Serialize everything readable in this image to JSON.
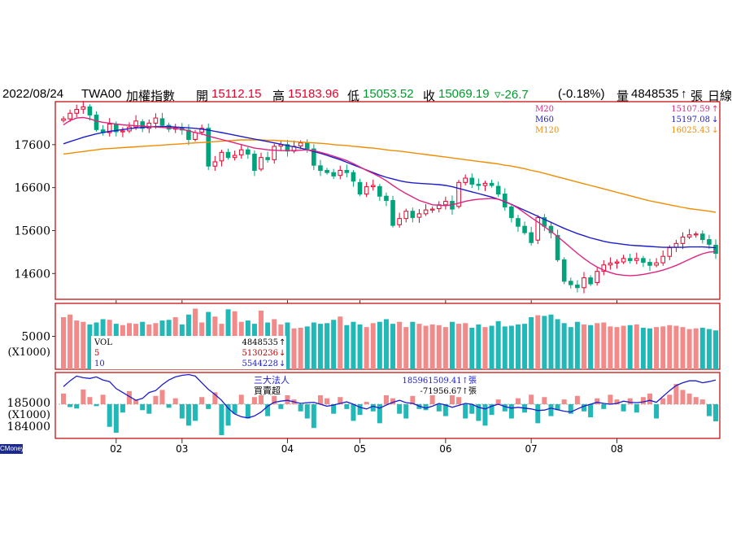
{
  "header": {
    "date": "2022/08/24",
    "symbol": "TWA00",
    "name": "加權指數",
    "open_label": "開",
    "open": "15112.15",
    "high_label": "高",
    "high": "15183.96",
    "low_label": "低",
    "low": "15053.52",
    "close_label": "收",
    "close": "15069.19",
    "change": "▿-26.7",
    "change_pct": "(-0.18%)",
    "volume_label": "量",
    "volume": "4848535",
    "volume_arrow": "↑",
    "volume_unit": "張",
    "period": "日線"
  },
  "brand": "CMoney",
  "colors": {
    "up": "#e8002a",
    "down": "#00a37a",
    "ma20": "#e0237f",
    "ma60": "#1c1ccc",
    "ma120": "#f08c00",
    "vol_up": "#f28a8a",
    "vol_down": "#22b8b8",
    "frame": "#c00000"
  },
  "chart_data": [
    {
      "type": "candlestick",
      "title": "price",
      "ylim": [
        14000,
        18600
      ],
      "yticks": [
        17600,
        16600,
        15600,
        14600
      ],
      "x_labels": [
        "02",
        "03",
        "04",
        "05",
        "06",
        "07",
        "08"
      ],
      "legend": [
        {
          "name": "M20",
          "value": "15107.59",
          "arrow": "↑",
          "color": "#e0237f"
        },
        {
          "name": "M60",
          "value": "15197.08",
          "arrow": "↓",
          "color": "#1c1ccc"
        },
        {
          "name": "M120",
          "value": "16025.43",
          "arrow": "↓",
          "color": "#f08c00"
        }
      ],
      "closes": [
        18200,
        18330,
        18420,
        18480,
        18290,
        17950,
        17880,
        18080,
        17900,
        17920,
        18010,
        18150,
        17980,
        18100,
        18220,
        18050,
        17960,
        18000,
        17940,
        17720,
        17880,
        17980,
        17100,
        17200,
        17420,
        17300,
        17350,
        17480,
        17380,
        17000,
        17300,
        17250,
        17560,
        17600,
        17450,
        17560,
        17640,
        17500,
        17120,
        17000,
        16950,
        16870,
        17000,
        16950,
        16750,
        16450,
        16620,
        16650,
        16400,
        16300,
        15720,
        15880,
        16050,
        15900,
        15990,
        16080,
        16100,
        16200,
        16280,
        16100,
        16720,
        16820,
        16680,
        16650,
        16700,
        16650,
        16450,
        16150,
        15900,
        15700,
        15550,
        15320,
        15900,
        15700,
        15550,
        14920,
        14420,
        14340,
        14270,
        14500,
        14360,
        14650,
        14800,
        14840,
        14870,
        14950,
        14900,
        14950,
        14860,
        14790,
        14850,
        15000,
        15200,
        15300,
        15450,
        15500,
        15520,
        15390,
        15280,
        15069
      ],
      "ma20": [
        18060,
        18160,
        18220,
        18230,
        18200,
        18150,
        18120,
        18100,
        18080,
        18060,
        18050,
        18040,
        18030,
        18020,
        18010,
        18000,
        17990,
        17980,
        17960,
        17920,
        17880,
        17850,
        17800,
        17760,
        17720,
        17680,
        17640,
        17600,
        17560,
        17520,
        17500,
        17480,
        17470,
        17460,
        17460,
        17460,
        17470,
        17480,
        17460,
        17420,
        17380,
        17330,
        17280,
        17230,
        17160,
        17080,
        17000,
        16930,
        16850,
        16760,
        16650,
        16550,
        16460,
        16380,
        16300,
        16250,
        16200,
        16190,
        16180,
        16200,
        16240,
        16280,
        16310,
        16330,
        16340,
        16350,
        16330,
        16280,
        16210,
        16120,
        16010,
        15900,
        15800,
        15690,
        15580,
        15460,
        15330,
        15200,
        15070,
        14950,
        14840,
        14750,
        14680,
        14620,
        14580,
        14560,
        14550,
        14560,
        14580,
        14610,
        14640,
        14680,
        14730,
        14790,
        14860,
        14930,
        15000,
        15060,
        15100,
        15110
      ],
      "ma60": [
        17620,
        17670,
        17720,
        17770,
        17810,
        17850,
        17880,
        17910,
        17930,
        17950,
        17970,
        17990,
        18000,
        18010,
        18020,
        18020,
        18020,
        18010,
        18000,
        17990,
        17980,
        17960,
        17940,
        17910,
        17880,
        17850,
        17820,
        17790,
        17760,
        17730,
        17700,
        17670,
        17640,
        17610,
        17580,
        17550,
        17520,
        17480,
        17440,
        17400,
        17350,
        17300,
        17250,
        17190,
        17130,
        17070,
        17010,
        16950,
        16890,
        16840,
        16800,
        16760,
        16730,
        16710,
        16700,
        16690,
        16680,
        16670,
        16650,
        16620,
        16580,
        16540,
        16500,
        16460,
        16420,
        16380,
        16330,
        16270,
        16210,
        16140,
        16070,
        16000,
        15930,
        15860,
        15790,
        15720,
        15650,
        15590,
        15530,
        15480,
        15430,
        15390,
        15350,
        15320,
        15300,
        15280,
        15260,
        15250,
        15240,
        15230,
        15220,
        15210,
        15210,
        15210,
        15210,
        15220,
        15220,
        15220,
        15210,
        15200
      ],
      "ma120": [
        17380,
        17400,
        17420,
        17440,
        17460,
        17480,
        17500,
        17510,
        17520,
        17530,
        17540,
        17550,
        17560,
        17570,
        17580,
        17590,
        17600,
        17610,
        17620,
        17630,
        17640,
        17650,
        17660,
        17670,
        17680,
        17690,
        17700,
        17710,
        17710,
        17710,
        17710,
        17700,
        17700,
        17690,
        17680,
        17670,
        17660,
        17650,
        17640,
        17630,
        17620,
        17600,
        17590,
        17580,
        17560,
        17550,
        17530,
        17520,
        17500,
        17480,
        17460,
        17450,
        17430,
        17410,
        17390,
        17370,
        17350,
        17330,
        17310,
        17290,
        17270,
        17250,
        17230,
        17210,
        17190,
        17170,
        17150,
        17120,
        17100,
        17070,
        17040,
        17000,
        16970,
        16930,
        16890,
        16850,
        16810,
        16770,
        16730,
        16690,
        16650,
        16610,
        16570,
        16530,
        16490,
        16450,
        16410,
        16370,
        16330,
        16290,
        16260,
        16230,
        16200,
        16170,
        16140,
        16110,
        16090,
        16070,
        16050,
        16025
      ]
    },
    {
      "type": "bar",
      "title": "volume",
      "ylabel": "(X1000)",
      "ytick": "5000",
      "legend": [
        {
          "name": "VOL",
          "value": "4848535",
          "arrow": "↑"
        },
        {
          "name": "5",
          "value": "5130236",
          "arrow": "↓"
        },
        {
          "name": "10",
          "value": "5544228",
          "arrow": "↓"
        }
      ],
      "values": [
        7900,
        8300,
        7400,
        7200,
        6800,
        7100,
        7600,
        7500,
        6900,
        6700,
        7000,
        6900,
        7200,
        6800,
        7000,
        7400,
        7500,
        7900,
        6800,
        8300,
        9200,
        7100,
        8700,
        8000,
        6900,
        9100,
        8800,
        7200,
        7400,
        6900,
        8900,
        7100,
        7600,
        6800,
        7100,
        6200,
        6300,
        6500,
        7100,
        6900,
        7000,
        7500,
        8000,
        6700,
        7200,
        6800,
        6400,
        7000,
        7200,
        7600,
        6900,
        7200,
        6400,
        7200,
        6900,
        6600,
        6800,
        6700,
        6400,
        7200,
        6900,
        7000,
        6300,
        6800,
        6400,
        6600,
        7300,
        6500,
        6600,
        6800,
        6900,
        7900,
        8200,
        8100,
        8300,
        7600,
        7000,
        6400,
        7200,
        6800,
        6700,
        7000,
        7100,
        6500,
        6400,
        6600,
        6700,
        6800,
        6300,
        6200,
        6400,
        6500,
        6700,
        6600,
        6400,
        6100,
        6200,
        6300,
        6100,
        5900
      ],
      "up": [
        true,
        true,
        true,
        true,
        false,
        false,
        false,
        true,
        false,
        true,
        true,
        true,
        false,
        true,
        true,
        false,
        false,
        true,
        false,
        false,
        true,
        true,
        false,
        true,
        true,
        false,
        true,
        true,
        false,
        false,
        true,
        false,
        true,
        true,
        false,
        true,
        true,
        false,
        false,
        false,
        false,
        false,
        true,
        false,
        false,
        false,
        true,
        true,
        false,
        false,
        false,
        true,
        true,
        false,
        true,
        true,
        true,
        true,
        true,
        false,
        true,
        true,
        false,
        false,
        true,
        false,
        false,
        false,
        false,
        false,
        false,
        false,
        true,
        false,
        false,
        false,
        false,
        false,
        false,
        true,
        false,
        true,
        true,
        true,
        true,
        true,
        false,
        true,
        false,
        false,
        true,
        true,
        true,
        true,
        true,
        true,
        true,
        false,
        false,
        false
      ]
    },
    {
      "type": "bar+line",
      "title": "三大法人 買賣超",
      "ylabel": "(X1000)",
      "yticks": [
        "185000",
        "184000"
      ],
      "legend": [
        {
          "name": "三大法人",
          "value": "185961509.41",
          "arrow": "↑",
          "unit": "張"
        },
        {
          "name": "買賣超",
          "value": "-71956.67",
          "arrow": "↑",
          "unit": "張"
        }
      ],
      "net_buy": [
        45000,
        -12000,
        -18000,
        62000,
        30000,
        -8000,
        40000,
        -95000,
        -120000,
        -35000,
        55000,
        20000,
        -25000,
        -40000,
        35000,
        60000,
        -15000,
        25000,
        -60000,
        -90000,
        -70000,
        30000,
        -20000,
        50000,
        -130000,
        -90000,
        -40000,
        40000,
        -60000,
        30000,
        45000,
        -50000,
        35000,
        -20000,
        55000,
        20000,
        -30000,
        -60000,
        -100000,
        40000,
        25000,
        -40000,
        30000,
        -20000,
        -70000,
        -45000,
        10000,
        -30000,
        -80000,
        50000,
        25000,
        -40000,
        -60000,
        35000,
        -20000,
        -25000,
        45000,
        -30000,
        -50000,
        40000,
        30000,
        -60000,
        -40000,
        -70000,
        -90000,
        -45000,
        20000,
        -30000,
        -60000,
        25000,
        -35000,
        40000,
        -80000,
        30000,
        -50000,
        -25000,
        20000,
        -40000,
        35000,
        -30000,
        -55000,
        25000,
        -20000,
        40000,
        20000,
        -30000,
        25000,
        -35000,
        30000,
        45000,
        -60000,
        25000,
        40000,
        85000,
        60000,
        45000,
        30000,
        20000,
        -50000,
        -72000
      ],
      "holding_line": [
        0.45,
        0.6,
        0.72,
        0.68,
        0.66,
        0.7,
        0.62,
        0.58,
        0.4,
        0.3,
        0.2,
        0.1,
        0.15,
        0.3,
        0.35,
        0.5,
        0.62,
        0.7,
        0.74,
        0.76,
        0.72,
        0.55,
        0.38,
        0.25,
        0.1,
        -0.1,
        -0.25,
        -0.32,
        -0.35,
        -0.3,
        -0.2,
        -0.05,
        0.05,
        0.08,
        0.1,
        0.06,
        0.02,
        0.04,
        0.05,
        0.0,
        -0.05,
        -0.02,
        0.02,
        0.06,
        0.0,
        -0.08,
        -0.12,
        -0.05,
        -0.1,
        -0.02,
        0.05,
        0.1,
        0.04,
        0.02,
        -0.05,
        -0.1,
        -0.05,
        0.02,
        -0.02,
        -0.08,
        -0.03,
        0.02,
        0.0,
        -0.08,
        -0.12,
        -0.05,
        0.0,
        -0.06,
        -0.1,
        -0.08,
        -0.1,
        -0.12,
        -0.16,
        -0.15,
        -0.1,
        -0.14,
        -0.18,
        -0.2,
        -0.12,
        -0.05,
        0.0,
        0.05,
        0.02,
        0.0,
        0.02,
        0.08,
        0.05,
        0.04,
        0.06,
        0.1,
        0.05,
        0.2,
        0.35,
        0.48,
        0.55,
        0.6,
        0.6,
        0.55,
        0.58,
        0.62
      ]
    }
  ]
}
